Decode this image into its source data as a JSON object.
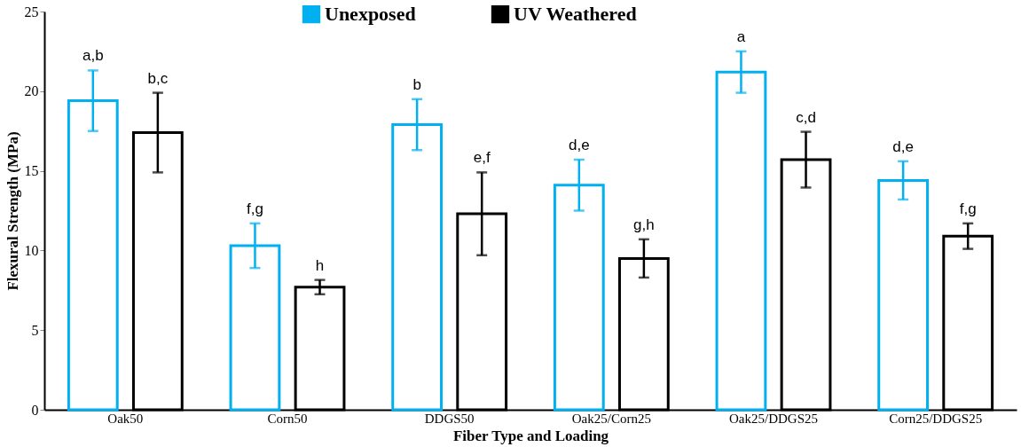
{
  "chart_data": {
    "type": "bar",
    "xlabel": "Fiber Type and Loading",
    "ylabel": "Flexural Strength (MPa)",
    "categories": [
      "Oak50",
      "Corn50",
      "DDGS50",
      "Oak25/Corn25",
      "Oak25/DDGS25",
      "Corn25/DDGS25"
    ],
    "series": [
      {
        "name": "Unexposed",
        "color": "#00b0f0",
        "values": [
          19.4,
          10.3,
          17.9,
          14.1,
          21.2,
          14.4
        ],
        "errors": [
          1.9,
          1.4,
          1.6,
          1.6,
          1.3,
          1.2
        ],
        "value_labels": [
          "a,b",
          "f,g",
          "b",
          "d,e",
          "a",
          "d,e"
        ]
      },
      {
        "name": "UV Weathered",
        "color": "#000000",
        "values": [
          17.4,
          7.7,
          12.3,
          9.5,
          15.7,
          10.9
        ],
        "errors": [
          2.5,
          0.45,
          2.6,
          1.2,
          1.75,
          0.8
        ],
        "value_labels": [
          "b,c",
          "h",
          "e,f",
          "g,h",
          "c,d",
          "f,g"
        ]
      }
    ],
    "ylim": [
      0,
      25
    ],
    "yticks": [
      0,
      5,
      10,
      15,
      20,
      25
    ],
    "grid": false,
    "legend": "top"
  }
}
